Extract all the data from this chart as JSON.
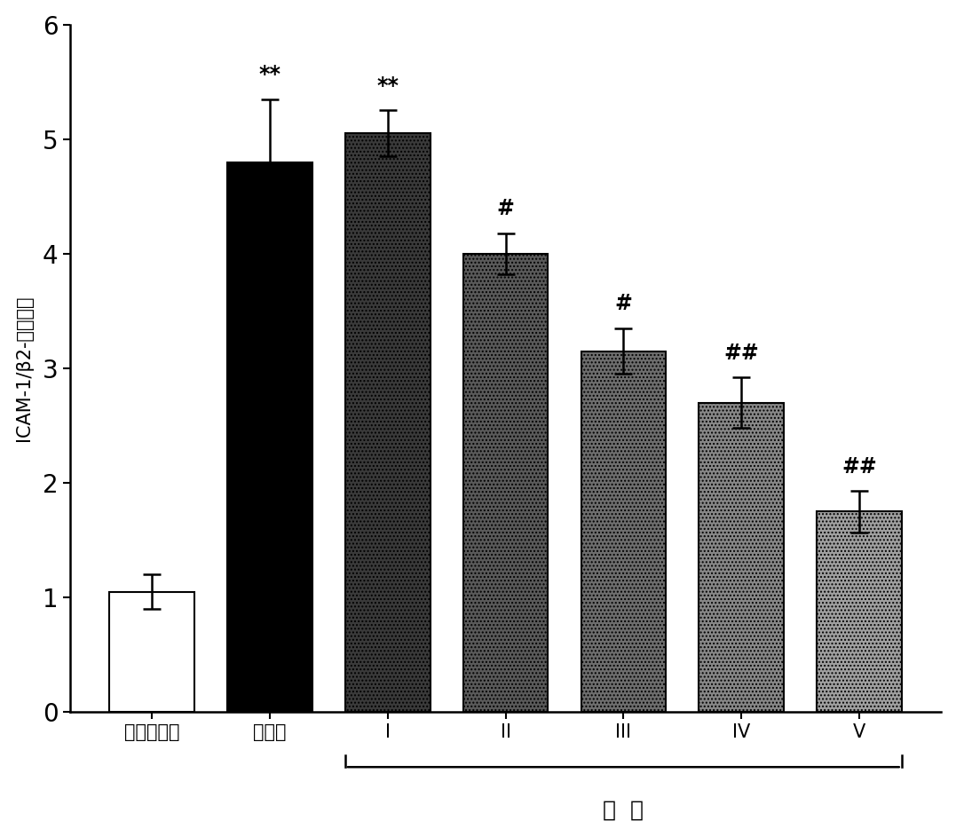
{
  "categories": [
    "正常对照组",
    "模型组",
    "I",
    "II",
    "III",
    "IV",
    "V"
  ],
  "values": [
    1.05,
    4.8,
    5.05,
    4.0,
    3.15,
    2.7,
    1.75
  ],
  "errors": [
    0.15,
    0.55,
    0.2,
    0.18,
    0.2,
    0.22,
    0.18
  ],
  "bar_facecolors": [
    "white",
    "black",
    "#3a3a3a",
    "#5a5a5a",
    "#6e6e6e",
    "#878787",
    "#a0a0a0"
  ],
  "bar_hatches": [
    null,
    null,
    "....",
    "....",
    "....",
    "....",
    "...."
  ],
  "significance": [
    "",
    "**",
    "**",
    "#",
    "#",
    "##",
    "##"
  ],
  "ylabel_chars": [
    "I",
    "C",
    "A",
    "M",
    "-",
    "1",
    "/",
    "β",
    "2",
    "-",
    "微",
    "球",
    "蛋",
    "白"
  ],
  "xlabel_main": "组  方",
  "ylim": [
    0,
    6
  ],
  "yticks": [
    0,
    1,
    2,
    3,
    4,
    5,
    6
  ],
  "background_color": "white",
  "bar_edgecolor": "black",
  "group_label": "组  方",
  "fig_width": 10.77,
  "fig_height": 9.34,
  "bar_width": 0.72
}
